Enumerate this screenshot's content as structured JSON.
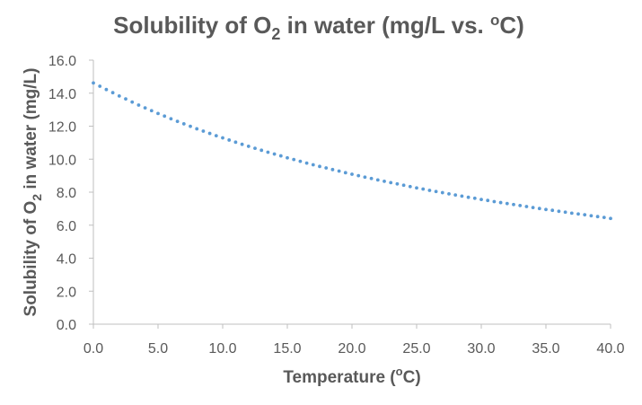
{
  "chart_data": {
    "type": "scatter",
    "title": {
      "main": "Solubility of O",
      "sub": "2",
      "rest": " in water (mg/L vs. ",
      "sup": "o",
      "end": "C)"
    },
    "xlabel": {
      "main": "Temperature (",
      "sup": "o",
      "end": "C)"
    },
    "ylabel": {
      "main": "Solubility of O",
      "sub": "2",
      "end": " in water (mg/L)"
    },
    "xlim": [
      0,
      40
    ],
    "ylim": [
      0,
      16
    ],
    "x_ticks": [
      "0.0",
      "5.0",
      "10.0",
      "15.0",
      "20.0",
      "25.0",
      "30.0",
      "35.0",
      "40.0"
    ],
    "y_ticks": [
      "0.0",
      "2.0",
      "4.0",
      "6.0",
      "8.0",
      "10.0",
      "12.0",
      "14.0",
      "16.0"
    ],
    "grid": false,
    "legend": "none",
    "series": [
      {
        "color": "#5b9bd5",
        "x": [
          0.0,
          0.5,
          1.0,
          1.5,
          2.0,
          2.5,
          3.0,
          3.5,
          4.0,
          4.5,
          5.0,
          5.5,
          6.0,
          6.5,
          7.0,
          7.5,
          8.0,
          8.5,
          9.0,
          9.5,
          10.0,
          10.5,
          11.0,
          11.5,
          12.0,
          12.5,
          13.0,
          13.5,
          14.0,
          14.5,
          15.0,
          15.5,
          16.0,
          16.5,
          17.0,
          17.5,
          18.0,
          18.5,
          19.0,
          19.5,
          20.0,
          20.5,
          21.0,
          21.5,
          22.0,
          22.5,
          23.0,
          23.5,
          24.0,
          24.5,
          25.0,
          25.5,
          26.0,
          26.5,
          27.0,
          27.5,
          28.0,
          28.5,
          29.0,
          29.5,
          30.0,
          30.5,
          31.0,
          31.5,
          32.0,
          32.5,
          33.0,
          33.5,
          34.0,
          34.5,
          35.0,
          35.5,
          36.0,
          36.5,
          37.0,
          37.5,
          38.0,
          38.5,
          39.0,
          39.5,
          40.0
        ],
        "y": [
          14.62,
          14.42,
          14.22,
          14.03,
          13.83,
          13.65,
          13.46,
          13.28,
          13.11,
          12.94,
          12.77,
          12.61,
          12.45,
          12.29,
          12.14,
          11.99,
          11.84,
          11.7,
          11.56,
          11.42,
          11.29,
          11.16,
          11.03,
          10.9,
          10.78,
          10.66,
          10.54,
          10.42,
          10.31,
          10.2,
          10.08,
          9.98,
          9.87,
          9.76,
          9.66,
          9.56,
          9.47,
          9.37,
          9.28,
          9.18,
          9.09,
          9.0,
          8.91,
          8.83,
          8.74,
          8.66,
          8.58,
          8.5,
          8.42,
          8.34,
          8.26,
          8.19,
          8.11,
          8.04,
          7.97,
          7.9,
          7.83,
          7.76,
          7.69,
          7.63,
          7.56,
          7.5,
          7.43,
          7.37,
          7.31,
          7.25,
          7.19,
          7.13,
          7.07,
          7.01,
          6.95,
          6.9,
          6.84,
          6.79,
          6.73,
          6.68,
          6.63,
          6.57,
          6.52,
          6.47,
          6.41
        ]
      }
    ]
  }
}
